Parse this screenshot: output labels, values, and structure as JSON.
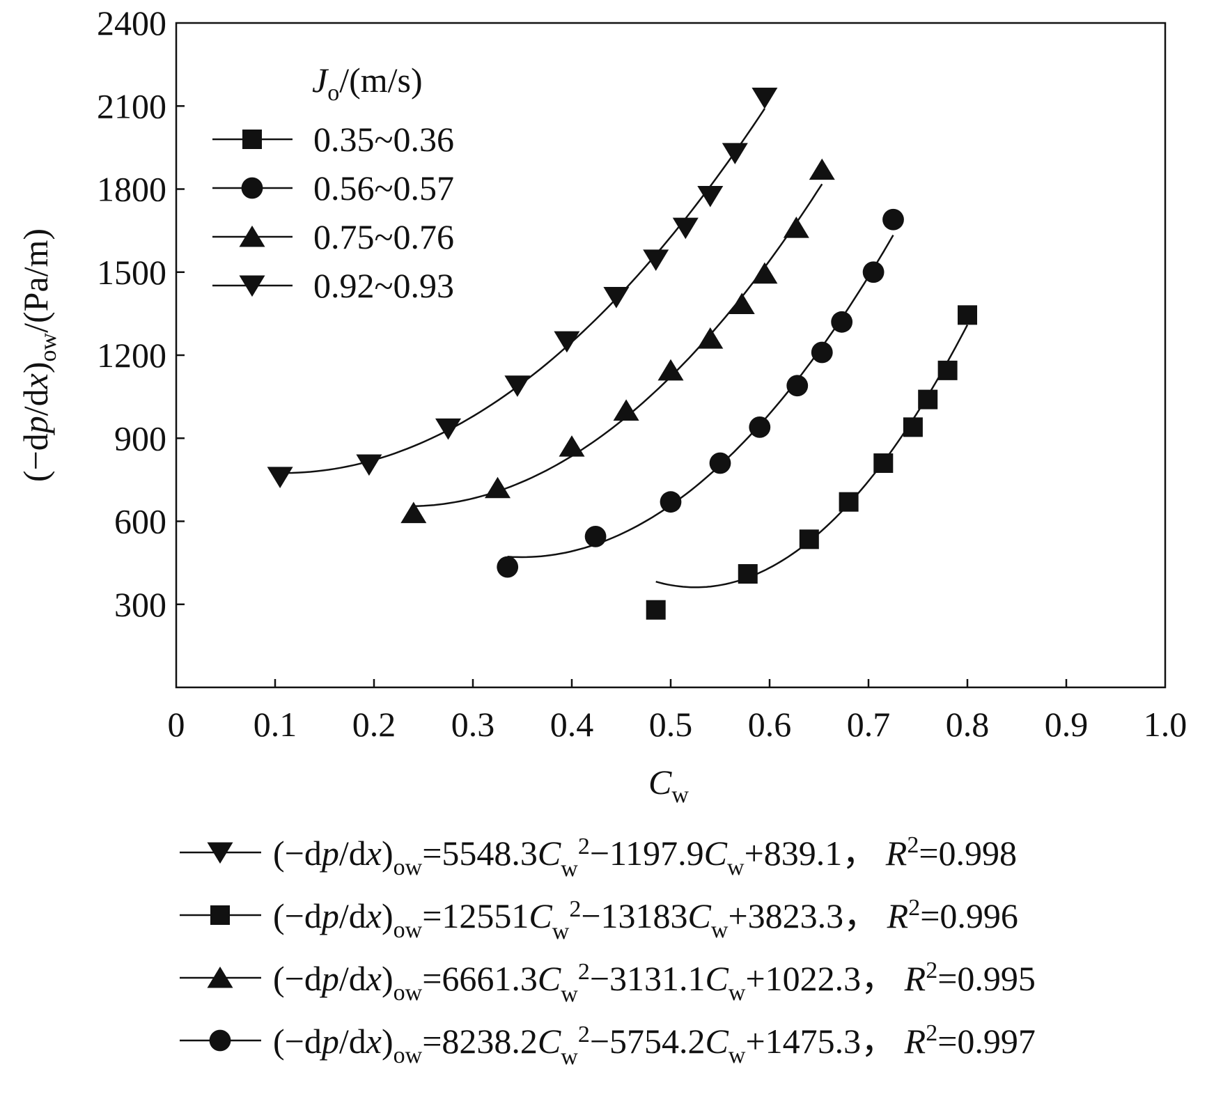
{
  "chart_data": {
    "type": "line",
    "xlabel": {
      "main": "C",
      "sub": "w"
    },
    "ylabel": {
      "p1": "(−d",
      "p2": "p",
      "p3": "/d",
      "p4": "x",
      "p5": ")",
      "sub": "ow",
      "p6": "/(Pa/m)"
    },
    "xlim": [
      0,
      1.0
    ],
    "ylim": [
      0,
      2400
    ],
    "x_ticks": [
      "0",
      "0.1",
      "0.2",
      "0.3",
      "0.4",
      "0.5",
      "0.6",
      "0.7",
      "0.8",
      "0.9",
      "1.0"
    ],
    "y_ticks": [
      "300",
      "600",
      "900",
      "1200",
      "1500",
      "1800",
      "2100",
      "2400"
    ],
    "grid": false,
    "legend": {
      "position": "top-left",
      "title": {
        "main": "J",
        "sub": "o",
        "rest": "/(m/s)"
      },
      "entries": [
        "0.35~0.36",
        "0.56~0.57",
        "0.75~0.76",
        "0.92~0.93"
      ]
    },
    "series": [
      {
        "name": "0.35~0.36",
        "marker": "square",
        "x": [
          0.485,
          0.578,
          0.64,
          0.68,
          0.715,
          0.745,
          0.76,
          0.78,
          0.8
        ],
        "y": [
          280,
          410,
          535,
          670,
          810,
          940,
          1040,
          1145,
          1345
        ],
        "fit": [
          12551,
          -13183,
          3823.3
        ]
      },
      {
        "name": "0.56~0.57",
        "marker": "circle",
        "x": [
          0.335,
          0.424,
          0.5,
          0.55,
          0.59,
          0.628,
          0.653,
          0.673,
          0.705,
          0.725
        ],
        "y": [
          435,
          545,
          670,
          810,
          940,
          1090,
          1210,
          1320,
          1500,
          1690
        ],
        "fit": [
          8238.2,
          -5754.2,
          1475.3
        ]
      },
      {
        "name": "0.75~0.76",
        "marker": "triangle-up",
        "x": [
          0.24,
          0.325,
          0.4,
          0.455,
          0.5,
          0.54,
          0.572,
          0.595,
          0.627,
          0.653
        ],
        "y": [
          630,
          720,
          870,
          1000,
          1145,
          1260,
          1385,
          1495,
          1660,
          1870
        ],
        "fit": [
          6661.3,
          -3131.1,
          1022.3
        ]
      },
      {
        "name": "0.92~0.93",
        "marker": "triangle-down",
        "x": [
          0.105,
          0.195,
          0.275,
          0.345,
          0.395,
          0.445,
          0.485,
          0.515,
          0.54,
          0.565,
          0.595
        ],
        "y": [
          760,
          805,
          935,
          1090,
          1250,
          1410,
          1545,
          1660,
          1775,
          1930,
          2130
        ],
        "fit": [
          5548.3,
          -1197.9,
          839.1
        ]
      }
    ],
    "equations": [
      {
        "marker": "triangle-down",
        "c2": "=5548.3",
        "c1": "−1197.9",
        "c0": "+839.1，",
        "r2": "=0.998"
      },
      {
        "marker": "square",
        "c2": "=12551",
        "c1": "−13183",
        "c0": "+3823.3，",
        "r2": "=0.996"
      },
      {
        "marker": "triangle-up",
        "c2": "=6661.3",
        "c1": "−3131.1",
        "c0": "+1022.3，",
        "r2": "=0.995"
      },
      {
        "marker": "circle",
        "c2": "=8238.2",
        "c1": "−5754.2",
        "c0": "+1475.3，",
        "r2": "=0.997"
      }
    ],
    "equation_parts": {
      "lhs1": "(−d",
      "lhs_p": "p",
      "lhs2": "/d",
      "lhs_x": "x",
      "lhs3": ")",
      "lhs_sub": "ow",
      "c": "C",
      "w": "w",
      "sq": "2",
      "r": "R"
    }
  }
}
